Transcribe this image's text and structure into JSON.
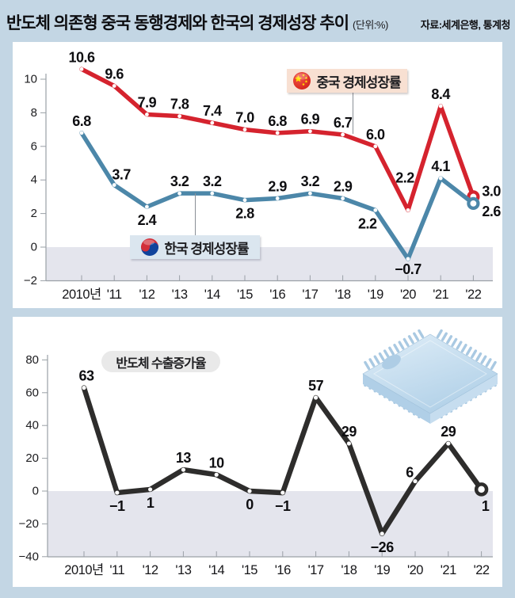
{
  "header": {
    "title": "반도체 의존형 중국 동행경제와 한국의 경제성장 추이",
    "unit": "(단위:%)",
    "source": "자료:세계은행, 통계청"
  },
  "colors": {
    "page_bg": "#c3d6e4",
    "panel_bg": "#ffffff",
    "china_line": "#d5232e",
    "korea_line": "#4c87a9",
    "semi_line": "#2e2d2c",
    "negative_band": "#e4e5ed",
    "axis": "#9aa0a6",
    "label_text": "#0e0e11",
    "china_legend_bg": "#f8e0d2",
    "korea_legend_bg": "#dbe6ef",
    "semi_legend_bg": "#e9e9e9"
  },
  "chart_data": [
    {
      "type": "line",
      "title": "중국·한국 경제성장률",
      "categories": [
        "2010년",
        "'11",
        "'12",
        "'13",
        "'14",
        "'15",
        "'16",
        "'17",
        "'18",
        "'19",
        "'20",
        "'21",
        "'22"
      ],
      "yticks": [
        10,
        8,
        6,
        4,
        2,
        0,
        -2
      ],
      "ylim": [
        -2,
        11.7
      ],
      "grid": false,
      "negative_band": true,
      "value_format": "1dp",
      "legend_position": "inside",
      "series": [
        {
          "name": "중국 경제성장률",
          "key": "china-growth-line",
          "color_key": "china_line",
          "values": [
            10.6,
            9.6,
            7.9,
            7.8,
            7.4,
            7.0,
            6.8,
            6.9,
            6.7,
            6.0,
            2.2,
            8.4,
            3.0
          ],
          "label_side": [
            "above",
            "above",
            "above",
            "above",
            "above",
            "above",
            "above",
            "above",
            "above",
            "above",
            "above",
            "above",
            "right"
          ],
          "label_nudge": {
            "10": [
              -4,
              -26
            ],
            "12": [
              0,
              -7
            ]
          }
        },
        {
          "name": "한국 경제성장률",
          "key": "korea-growth-line",
          "color_key": "korea_line",
          "values": [
            6.8,
            3.7,
            2.4,
            3.2,
            3.2,
            2.8,
            2.9,
            3.2,
            2.9,
            2.2,
            -0.7,
            4.1,
            2.6
          ],
          "label_side": [
            "above",
            "above",
            "below",
            "above",
            "above",
            "below",
            "above",
            "above",
            "above",
            "below",
            "below",
            "above",
            "right"
          ],
          "label_nudge": {
            "1": [
              9,
              2
            ],
            "9": [
              -10,
              0
            ],
            "10": [
              0,
              -4
            ],
            "12": [
              0,
              10
            ]
          }
        }
      ]
    },
    {
      "type": "line",
      "title": "반도체 수출증가율",
      "categories": [
        "2010년",
        "'11",
        "'12",
        "'13",
        "'14",
        "'15",
        "'16",
        "'17",
        "'18",
        "'19",
        "'20",
        "'21",
        "'22"
      ],
      "yticks": [
        80,
        60,
        40,
        20,
        0,
        -20,
        -40
      ],
      "ylim": [
        -40,
        95
      ],
      "grid": false,
      "negative_band": true,
      "value_format": "int",
      "legend_position": "inside",
      "series": [
        {
          "name": "반도체 수출증가율",
          "key": "semiconductor-export-line",
          "color_key": "semi_line",
          "values": [
            63,
            -1,
            1,
            13,
            10,
            0,
            -1,
            57,
            29,
            -26,
            6,
            29,
            1
          ],
          "label_side": [
            "above",
            "below",
            "below",
            "above",
            "above",
            "below",
            "below",
            "above",
            "above",
            "below",
            "above",
            "above",
            "below"
          ],
          "label_nudge": {
            "0": [
              3,
              0
            ],
            "10": [
              -7,
              4
            ],
            "12": [
              5,
              4
            ]
          }
        }
      ]
    }
  ]
}
